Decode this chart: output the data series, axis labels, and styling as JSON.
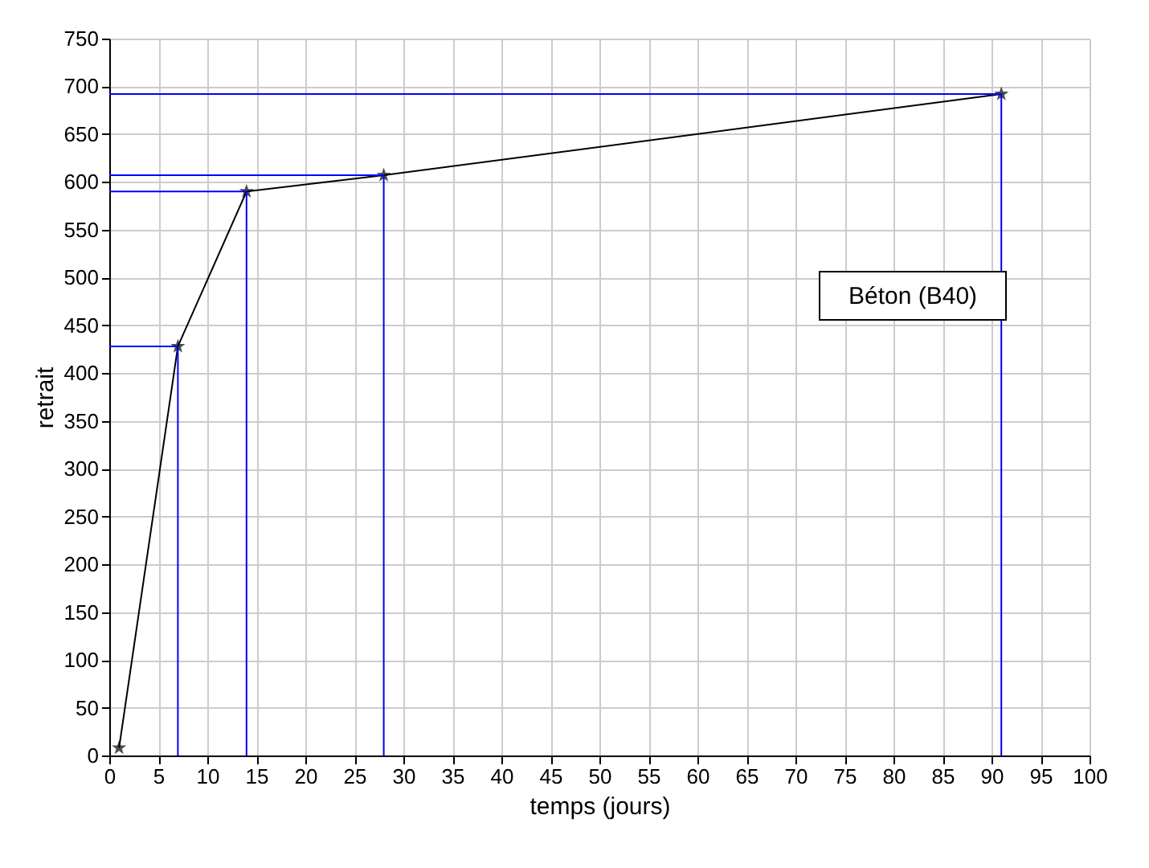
{
  "chart_data": {
    "type": "line",
    "xlabel": "temps (jours)",
    "ylabel": "retrait",
    "annotations": [
      "Béton (B40)"
    ],
    "series": [
      {
        "color": "#000000",
        "x": [
          1,
          7,
          14,
          28,
          91
        ],
        "values": [
          8,
          428,
          590,
          607,
          692
        ],
        "marker": "star"
      },
      {
        "color": "#0000ff",
        "x": [
          0,
          7,
          7
        ],
        "values": [
          428,
          428,
          0
        ],
        "marker": "none"
      },
      {
        "color": "#0000ff",
        "x": [
          0,
          14,
          14
        ],
        "values": [
          590,
          590,
          0
        ],
        "marker": "none"
      },
      {
        "color": "#0000ff",
        "x": [
          0,
          28,
          28
        ],
        "values": [
          607,
          607,
          0
        ],
        "marker": "none"
      },
      {
        "color": "#0000ff",
        "x": [
          0,
          91,
          91
        ],
        "values": [
          692,
          692,
          0
        ],
        "marker": "none"
      }
    ],
    "xlim": [
      0,
      100
    ],
    "xticks": [
      0,
      5,
      10,
      15,
      20,
      25,
      30,
      35,
      40,
      45,
      50,
      55,
      60,
      65,
      70,
      75,
      80,
      85,
      90,
      95,
      100
    ],
    "ylim": [
      0,
      750
    ],
    "yticks": [
      0,
      50,
      100,
      150,
      200,
      250,
      300,
      350,
      400,
      450,
      500,
      550,
      600,
      650,
      700,
      750
    ],
    "grid": true
  }
}
